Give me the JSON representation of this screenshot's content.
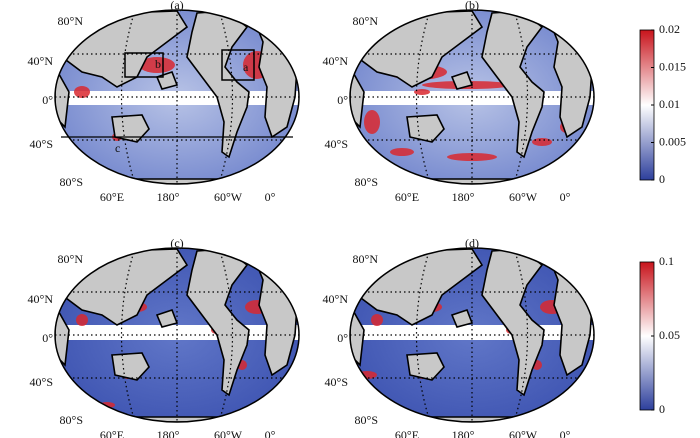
{
  "panels": [
    {
      "label": "(a)",
      "boxes": [
        "b",
        "a",
        "c"
      ]
    },
    {
      "label": "(b)"
    },
    {
      "label": "(c)"
    },
    {
      "label": "(d)"
    }
  ],
  "lat_labels": [
    "80°N",
    "40°N",
    "0°",
    "40°S",
    "80°S"
  ],
  "lon_labels": [
    "60°E",
    "180°",
    "60°W",
    "0°"
  ],
  "colorbars": [
    {
      "lim": [
        0,
        0.02
      ],
      "ticks": [
        0,
        0.005,
        0.01,
        0.015,
        0.02
      ]
    },
    {
      "lim": [
        0,
        0.1
      ],
      "ticks": [
        0,
        0.05,
        0.1
      ]
    }
  ]
}
